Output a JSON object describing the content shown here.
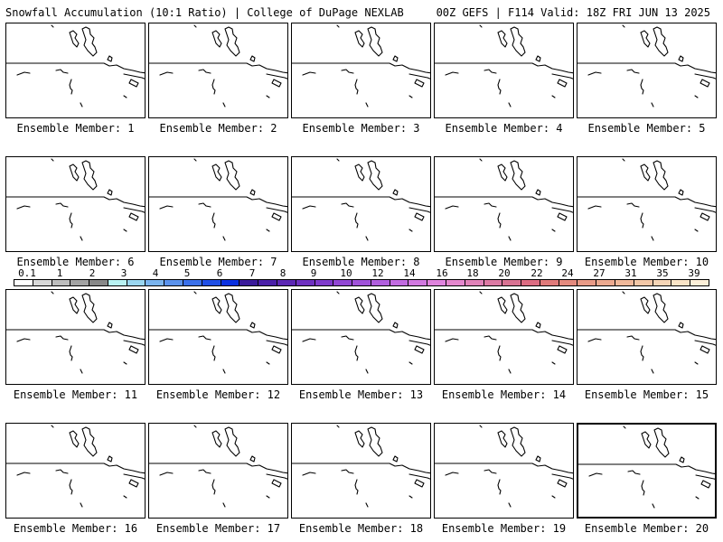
{
  "header": {
    "left_title": "Snowfall Accumulation (10:1 Ratio) | College of DuPage NEXLAB",
    "right_title": "00Z GEFS | F114 Valid: 18Z FRI JUN 13 2025"
  },
  "panels": [
    {
      "label": "Ensemble Member: 1"
    },
    {
      "label": "Ensemble Member: 2"
    },
    {
      "label": "Ensemble Member: 3"
    },
    {
      "label": "Ensemble Member: 4"
    },
    {
      "label": "Ensemble Member: 5"
    },
    {
      "label": "Ensemble Member: 6"
    },
    {
      "label": "Ensemble Member: 7"
    },
    {
      "label": "Ensemble Member: 8"
    },
    {
      "label": "Ensemble Member: 9"
    },
    {
      "label": "Ensemble Member: 10"
    },
    {
      "label": "Ensemble Member: 11"
    },
    {
      "label": "Ensemble Member: 12"
    },
    {
      "label": "Ensemble Member: 13"
    },
    {
      "label": "Ensemble Member: 14"
    },
    {
      "label": "Ensemble Member: 15"
    },
    {
      "label": "Ensemble Member: 16"
    },
    {
      "label": "Ensemble Member: 17"
    },
    {
      "label": "Ensemble Member: 18"
    },
    {
      "label": "Ensemble Member: 19"
    },
    {
      "label": "Ensemble Member: 20"
    }
  ],
  "colorbar": {
    "labels": [
      "0.1",
      "1",
      "2",
      "3",
      "4",
      "5",
      "6",
      "7",
      "8",
      "9",
      "10",
      "12",
      "14",
      "16",
      "18",
      "20",
      "22",
      "24",
      "27",
      "31",
      "35",
      "39"
    ],
    "colors": [
      "#ffffff",
      "#d8d8d8",
      "#bdbdbd",
      "#a3a3a3",
      "#888888",
      "#b8f2f2",
      "#9ad6f0",
      "#7ab4ee",
      "#5a92ec",
      "#3a70ea",
      "#1f4fe6",
      "#0a30e0",
      "#3a1a9a",
      "#4a1fa8",
      "#5c27b4",
      "#6e30c0",
      "#7f3acb",
      "#9146d3",
      "#a052d9",
      "#b05edd",
      "#c16ae0",
      "#d178e0",
      "#e084de",
      "#e487cd",
      "#e082b8",
      "#dc7aa4",
      "#d87292",
      "#dc6c82",
      "#e07a7a",
      "#e48a7e",
      "#e89a86",
      "#eca98f",
      "#f0b89a",
      "#f3c7a7",
      "#f6d5b6",
      "#f9e3c6",
      "#fcefd8"
    ]
  }
}
